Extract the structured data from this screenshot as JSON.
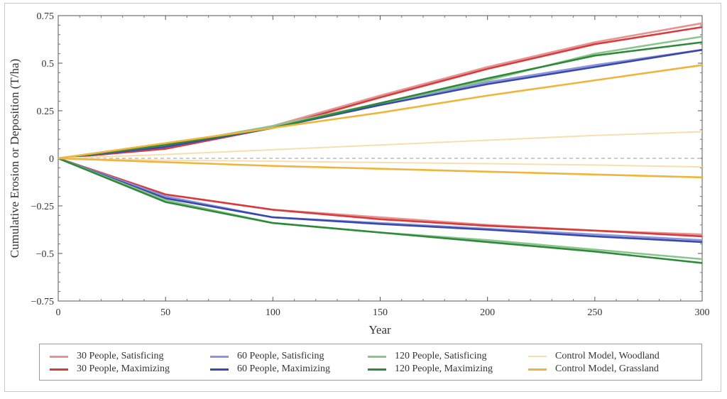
{
  "chart_data": {
    "type": "line",
    "title": "",
    "xlabel": "Year",
    "ylabel": "Cumulative Erosion or Deposition (T/ha)",
    "xlim": [
      0,
      300
    ],
    "ylim": [
      -0.75,
      0.75
    ],
    "xticks": [
      0,
      50,
      100,
      150,
      200,
      250,
      300
    ],
    "yticks": [
      0.75,
      0.5,
      0.25,
      0,
      -0.25,
      -0.5,
      -0.75
    ],
    "xtick_labels": [
      "0",
      "50",
      "100",
      "150",
      "200",
      "250",
      "300"
    ],
    "ytick_labels": [
      "0.75",
      "0.5",
      "0.25",
      "0",
      "−0.25",
      "−0.5",
      "−0.75"
    ],
    "grid": false,
    "reference_line": {
      "y": 0,
      "style": "dashed"
    },
    "legend_position": "bottom",
    "x": [
      0,
      50,
      100,
      150,
      200,
      250,
      300
    ],
    "series": [
      {
        "name": "30 People, Satisficing",
        "color": "#e89292",
        "values": [
          0,
          0.06,
          0.17,
          0.33,
          0.48,
          0.61,
          0.71
        ],
        "deposition": true
      },
      {
        "name": "30 People, Satisficing",
        "color": "#e89292",
        "values": [
          0,
          -0.19,
          -0.27,
          -0.31,
          -0.35,
          -0.38,
          -0.4
        ],
        "deposition": false
      },
      {
        "name": "30 People, Maximizing",
        "color": "#d63c3c",
        "values": [
          0,
          0.05,
          0.16,
          0.32,
          0.47,
          0.6,
          0.69
        ],
        "deposition": true
      },
      {
        "name": "30 People, Maximizing",
        "color": "#d63c3c",
        "values": [
          0,
          -0.19,
          -0.27,
          -0.32,
          -0.355,
          -0.38,
          -0.41
        ],
        "deposition": false
      },
      {
        "name": "60 People, Satisficing",
        "color": "#8b95d9",
        "values": [
          0,
          0.06,
          0.16,
          0.29,
          0.4,
          0.49,
          0.57
        ],
        "deposition": true
      },
      {
        "name": "60 People, Satisficing",
        "color": "#8b95d9",
        "values": [
          0,
          -0.2,
          -0.31,
          -0.34,
          -0.37,
          -0.4,
          -0.43
        ],
        "deposition": false
      },
      {
        "name": "60 People, Maximizing",
        "color": "#3a48ad",
        "values": [
          0,
          0.06,
          0.16,
          0.28,
          0.39,
          0.48,
          0.57
        ],
        "deposition": true
      },
      {
        "name": "60 People, Maximizing",
        "color": "#3a48ad",
        "values": [
          0,
          -0.21,
          -0.31,
          -0.345,
          -0.375,
          -0.41,
          -0.44
        ],
        "deposition": false
      },
      {
        "name": "120 People, Satisficing",
        "color": "#8cc48e",
        "values": [
          0,
          0.07,
          0.17,
          0.29,
          0.41,
          0.55,
          0.64
        ],
        "deposition": true
      },
      {
        "name": "120 People, Satisficing",
        "color": "#8cc48e",
        "values": [
          0,
          -0.22,
          -0.34,
          -0.39,
          -0.43,
          -0.48,
          -0.53
        ],
        "deposition": false
      },
      {
        "name": "120 People, Maximizing",
        "color": "#2e8a3a",
        "values": [
          0,
          0.07,
          0.16,
          0.29,
          0.42,
          0.54,
          0.61
        ],
        "deposition": true
      },
      {
        "name": "120 People, Maximizing",
        "color": "#2e8a3a",
        "values": [
          0,
          -0.23,
          -0.34,
          -0.39,
          -0.44,
          -0.49,
          -0.55
        ],
        "deposition": false
      },
      {
        "name": "Control Model, Woodland",
        "color": "#f5dfae",
        "values": [
          0,
          0.02,
          0.045,
          0.07,
          0.095,
          0.12,
          0.14
        ],
        "deposition": true
      },
      {
        "name": "Control Model, Woodland",
        "color": "#f5dfae",
        "values": [
          0,
          -0.01,
          -0.015,
          -0.022,
          -0.028,
          -0.035,
          -0.045
        ],
        "deposition": false
      },
      {
        "name": "Control Model, Grassland",
        "color": "#efb43c",
        "values": [
          0,
          0.08,
          0.16,
          0.24,
          0.33,
          0.41,
          0.49
        ],
        "deposition": true
      },
      {
        "name": "Control Model, Grassland",
        "color": "#efb43c",
        "values": [
          0,
          -0.02,
          -0.04,
          -0.055,
          -0.07,
          -0.085,
          -0.1
        ],
        "deposition": false
      }
    ],
    "legend": [
      {
        "label": "30 People, Satisficing",
        "color": "#e89292",
        "col": 0,
        "row": 0
      },
      {
        "label": "30 People, Maximizing",
        "color": "#d63c3c",
        "col": 0,
        "row": 1
      },
      {
        "label": "60 People, Satisficing",
        "color": "#8b95d9",
        "col": 1,
        "row": 0
      },
      {
        "label": "60 People, Maximizing",
        "color": "#3a48ad",
        "col": 1,
        "row": 1
      },
      {
        "label": "120 People, Satisficing",
        "color": "#8cc48e",
        "col": 2,
        "row": 0
      },
      {
        "label": "120 People, Maximizing",
        "color": "#2e8a3a",
        "col": 2,
        "row": 1
      },
      {
        "label": "Control Model, Woodland",
        "color": "#f5dfae",
        "col": 3,
        "row": 0
      },
      {
        "label": "Control Model, Grassland",
        "color": "#efb43c",
        "col": 3,
        "row": 1
      }
    ]
  }
}
